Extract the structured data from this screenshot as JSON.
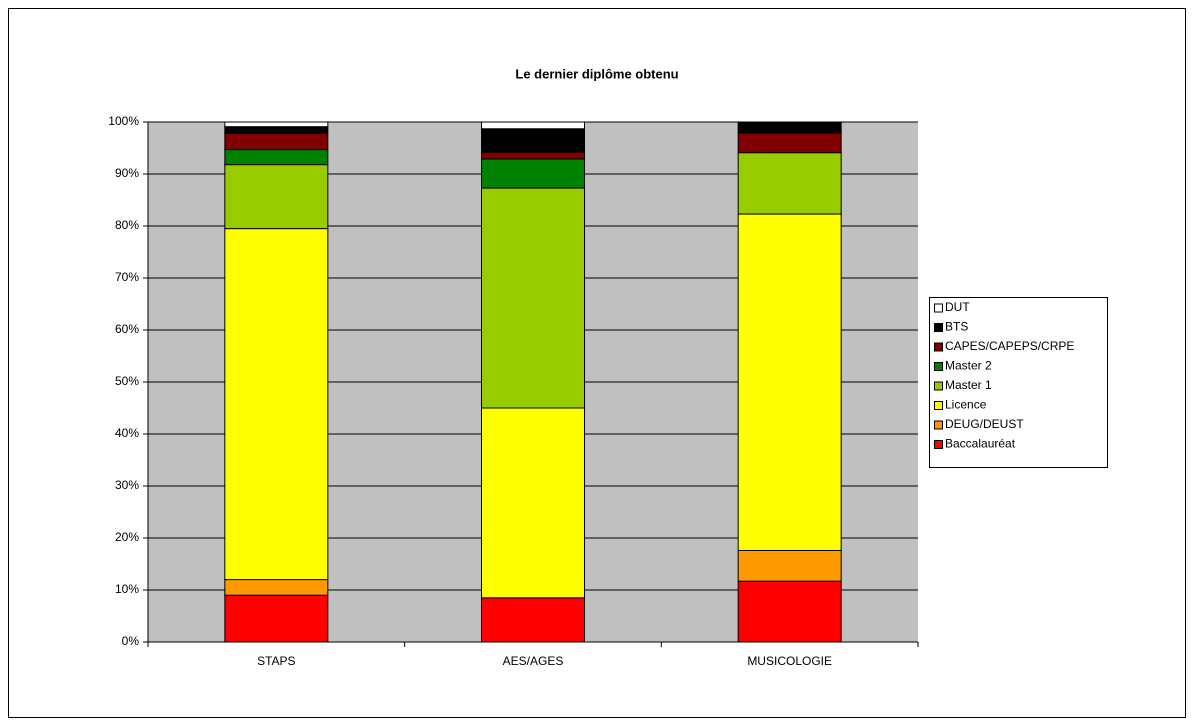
{
  "chart_data": {
    "type": "stacked_bar",
    "title": "Le dernier diplôme obtenu",
    "categories": [
      "STAPS",
      "AES/AGES",
      "MUSICOLOGIE"
    ],
    "series": [
      {
        "name": "Baccalauréat",
        "color": "#ff0000",
        "values": [
          9,
          8.5,
          11.7
        ]
      },
      {
        "name": "DEUG/DEUST",
        "color": "#ff9900",
        "values": [
          3,
          0,
          5.9
        ]
      },
      {
        "name": "Licence",
        "color": "#ffff00",
        "values": [
          67.5,
          36.5,
          64.7
        ]
      },
      {
        "name": "Master 1",
        "color": "#99cc00",
        "values": [
          12.3,
          42.3,
          11.8
        ]
      },
      {
        "name": "Master 2",
        "color": "#008000",
        "values": [
          2.9,
          5.6,
          0
        ]
      },
      {
        "name": "CAPES/CAPEPS/CRPE",
        "color": "#800000",
        "values": [
          3.1,
          1.3,
          3.8
        ]
      },
      {
        "name": "BTS",
        "color": "#000000",
        "values": [
          1.3,
          4.5,
          2.1
        ]
      },
      {
        "name": "DUT",
        "color": "#ffffff",
        "values": [
          0.9,
          1.3,
          0
        ]
      }
    ],
    "ylim": [
      0,
      100
    ],
    "yticks": [
      {
        "value": 0,
        "label": "0%"
      },
      {
        "value": 10,
        "label": "10%"
      },
      {
        "value": 20,
        "label": "20%"
      },
      {
        "value": 30,
        "label": "30%"
      },
      {
        "value": 40,
        "label": "40%"
      },
      {
        "value": 50,
        "label": "50%"
      },
      {
        "value": 60,
        "label": "60%"
      },
      {
        "value": 70,
        "label": "70%"
      },
      {
        "value": 80,
        "label": "80%"
      },
      {
        "value": 90,
        "label": "90%"
      },
      {
        "value": 100,
        "label": "100%"
      }
    ],
    "grid": true,
    "plot_background": "#c0c0c0",
    "legend": "right"
  }
}
